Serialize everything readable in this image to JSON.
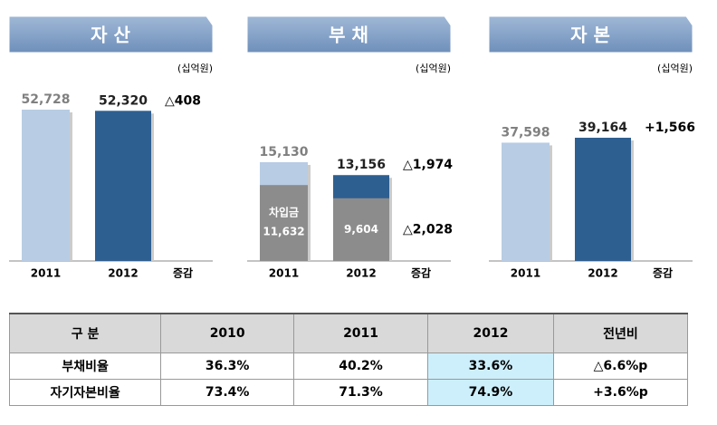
{
  "chart_data": [
    {
      "type": "bar",
      "title": "자 산",
      "unit": "(십억원)",
      "categories": [
        "2011",
        "2012"
      ],
      "change_label": "증감",
      "series": [
        {
          "values": [
            52728,
            52320
          ],
          "value_labels": [
            "52,728",
            "52,320"
          ],
          "colors": [
            "#b8cce4",
            "#2e5f91"
          ]
        }
      ],
      "changes": [
        "△408"
      ]
    },
    {
      "type": "bar",
      "title": "부 채",
      "unit": "(십억원)",
      "categories": [
        "2011",
        "2012"
      ],
      "change_label": "증감",
      "series": [
        {
          "values": [
            15130,
            13156
          ],
          "value_labels": [
            "15,130",
            "13,156"
          ],
          "colors": [
            "#b8cce4",
            "#2e5f91"
          ]
        },
        {
          "name": "차입금",
          "values": [
            11632,
            9604
          ],
          "value_labels": [
            "11,632",
            "9,604"
          ],
          "colors": [
            "#8c8c8c",
            "#8c8c8c"
          ]
        }
      ],
      "changes": [
        "△1,974",
        "△2,028"
      ]
    },
    {
      "type": "bar",
      "title": "자 본",
      "unit": "(십억원)",
      "categories": [
        "2011",
        "2012"
      ],
      "change_label": "증감",
      "series": [
        {
          "values": [
            37598,
            39164
          ],
          "value_labels": [
            "37,598",
            "39,164"
          ],
          "colors": [
            "#b8cce4",
            "#2e5f91"
          ]
        }
      ],
      "changes": [
        "+1,566"
      ]
    }
  ],
  "table": {
    "header": [
      "구 분",
      "2010",
      "2011",
      "2012",
      "전년비"
    ],
    "rows": [
      [
        "부채비율",
        "36.3%",
        "40.2%",
        "33.6%",
        "△6.6%p"
      ],
      [
        "자기자본비율",
        "73.4%",
        "71.3%",
        "74.9%",
        "+3.6%p"
      ]
    ]
  }
}
